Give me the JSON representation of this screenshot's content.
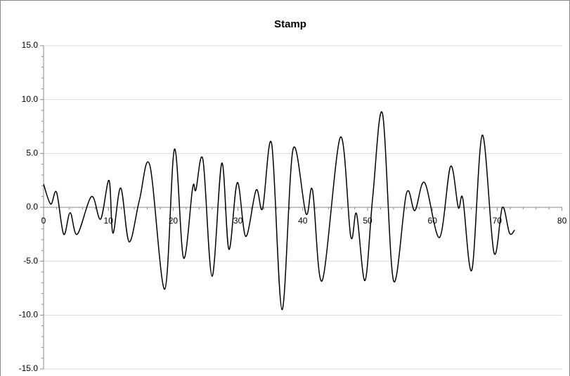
{
  "chart_data": {
    "type": "line",
    "title": "Stamp",
    "series": [
      {
        "name": "Stamp",
        "color": "#000000",
        "x": [
          0,
          1.1,
          2.0,
          3.1,
          4.1,
          5.2,
          7.4,
          8.8,
          10.1,
          10.7,
          11.9,
          13.2,
          14.8,
          16.4,
          18.7,
          20.2,
          21.6,
          23.0,
          23.5,
          24.6,
          26.0,
          27.5,
          28.6,
          29.9,
          31.2,
          32.8,
          33.8,
          35.2,
          36.8,
          38.5,
          40.5,
          41.5,
          43.0,
          45.8,
          47.4,
          48.3,
          49.6,
          50.8,
          52.3,
          54.0,
          56.0,
          57.3,
          58.8,
          61.1,
          62.8,
          64.0,
          64.7,
          66.1,
          67.7,
          69.5,
          70.8,
          71.9,
          72.7
        ],
        "values": [
          2.15,
          0.3,
          1.4,
          -2.5,
          -0.5,
          -2.5,
          1.0,
          -1.1,
          2.5,
          -2.4,
          1.8,
          -3.2,
          0.7,
          3.9,
          -7.6,
          5.4,
          -4.7,
          1.8,
          1.6,
          4.4,
          -6.4,
          4.1,
          -3.9,
          2.3,
          -2.7,
          1.6,
          -0.1,
          5.9,
          -9.5,
          5.4,
          -0.6,
          1.6,
          -6.8,
          6.5,
          -2.7,
          -0.6,
          -6.8,
          1.0,
          8.7,
          -6.8,
          1.3,
          -0.3,
          2.3,
          -2.8,
          3.8,
          0.0,
          0.8,
          -5.8,
          6.7,
          -4.2,
          0.0,
          -2.4,
          -2.1
        ]
      }
    ],
    "xlim": [
      0,
      80
    ],
    "xticks": [
      0,
      10,
      20,
      30,
      40,
      50,
      60,
      70,
      80
    ],
    "ylim": [
      -15,
      15
    ],
    "yticks": [
      {
        "value": -15,
        "label": "-15.0"
      },
      {
        "value": -10,
        "label": "-10.0"
      },
      {
        "value": -5,
        "label": "-5.0"
      },
      {
        "value": 0,
        "label": "0.0"
      },
      {
        "value": 5,
        "label": "5.0"
      },
      {
        "value": 10,
        "label": "10.0"
      },
      {
        "value": 15,
        "label": "15.0"
      }
    ],
    "grid": true
  }
}
